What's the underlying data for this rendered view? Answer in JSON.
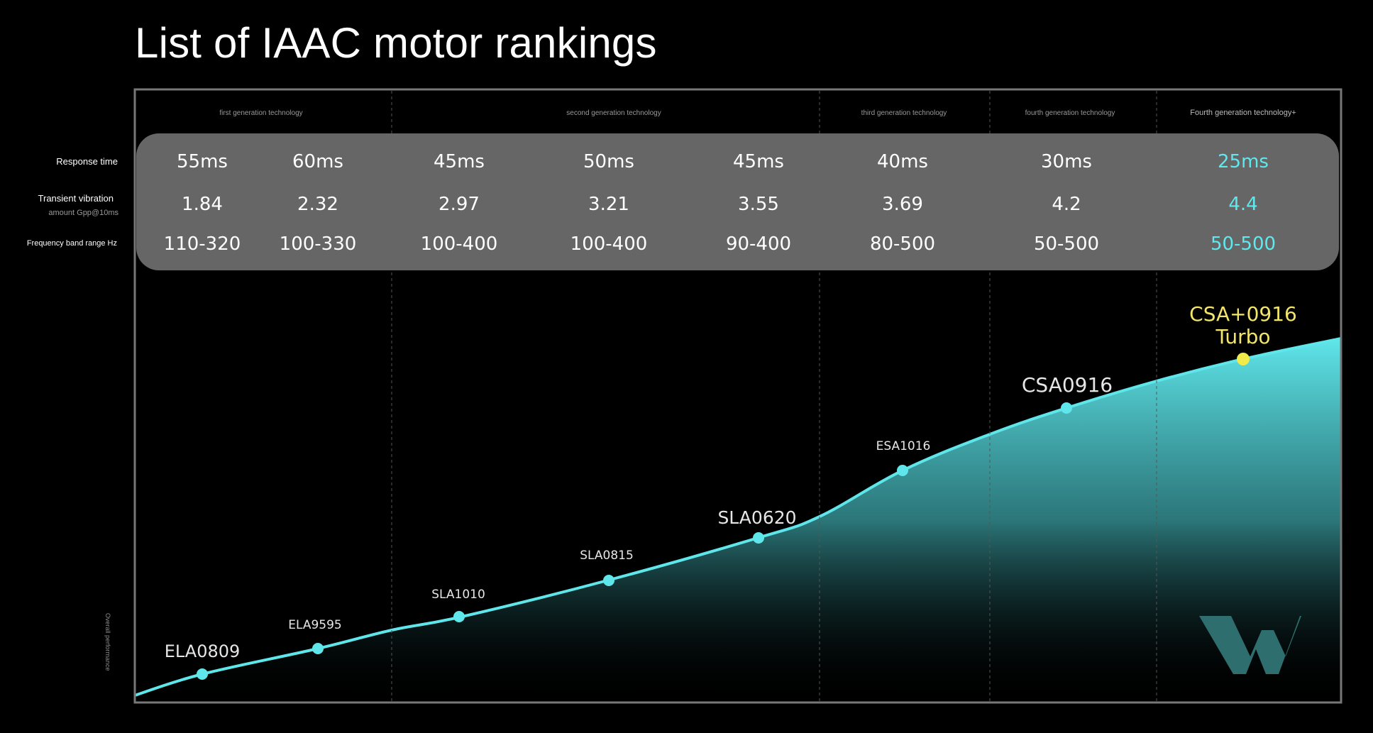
{
  "title": "List of IAAC motor rankings",
  "row_labels": {
    "response_time": "Response time",
    "transient_vibration": "Transient vibration",
    "transient_vibration_sub": "amount Gpp@10ms",
    "frequency_band": "Frequency band range Hz"
  },
  "y_axis_label": "Overall performance",
  "colors": {
    "background": "#000000",
    "curve": "#5fe6ea",
    "highlight_text": "#5fe8ee",
    "highlight_marker": "#f0ea4a",
    "highlight_label": "#f2e56a",
    "table_bg": "#666666",
    "logo": "#2f6e6e"
  },
  "logo_icon": "w-logo-icon",
  "chart_data": {
    "type": "area",
    "title": "List of IAAC motor rankings",
    "ylabel": "Overall performance",
    "grid": false,
    "generations": [
      {
        "label": "first generation technology",
        "models": [
          "ELA0809",
          "ELA9595"
        ]
      },
      {
        "label": "second generation technology",
        "models": [
          "SLA1010",
          "SLA0815",
          "SLA0620"
        ]
      },
      {
        "label": "third generation technology",
        "models": [
          "ESA1016"
        ]
      },
      {
        "label": "fourth generation technology",
        "models": [
          "CSA0916"
        ]
      },
      {
        "label": "Fourth generation technology+",
        "models": [
          "CSA+0916 Turbo"
        ]
      }
    ],
    "models": [
      {
        "name": "ELA0809",
        "response_time": "55ms",
        "transient_vibration": "1.84",
        "frequency_band": "110-320",
        "performance_rank": 1
      },
      {
        "name": "ELA9595",
        "response_time": "60ms",
        "transient_vibration": "2.32",
        "frequency_band": "100-330",
        "performance_rank": 2
      },
      {
        "name": "SLA1010",
        "response_time": "45ms",
        "transient_vibration": "2.97",
        "frequency_band": "100-400",
        "performance_rank": 3
      },
      {
        "name": "SLA0815",
        "response_time": "50ms",
        "transient_vibration": "3.21",
        "frequency_band": "100-400",
        "performance_rank": 4
      },
      {
        "name": "SLA0620",
        "response_time": "45ms",
        "transient_vibration": "3.55",
        "frequency_band": "90-400",
        "performance_rank": 5
      },
      {
        "name": "ESA1016",
        "response_time": "40ms",
        "transient_vibration": "3.69",
        "frequency_band": "80-500",
        "performance_rank": 6
      },
      {
        "name": "CSA0916",
        "response_time": "30ms",
        "transient_vibration": "4.2",
        "frequency_band": "50-500",
        "performance_rank": 7
      },
      {
        "name": "CSA+0916 Turbo",
        "response_time": "25ms",
        "transient_vibration": "4.4",
        "frequency_band": "50-500",
        "performance_rank": 8,
        "highlight": true
      }
    ]
  }
}
